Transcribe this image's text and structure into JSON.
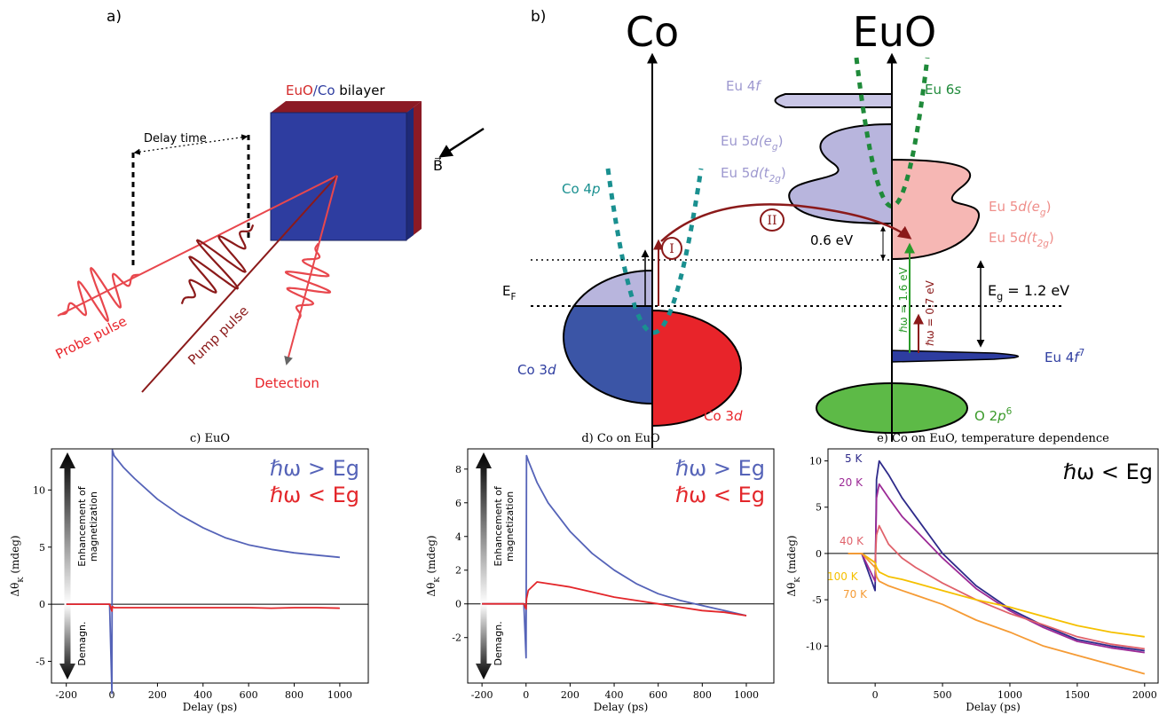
{
  "panel_a": {
    "label": "a)",
    "sample": [
      "EuO",
      "/",
      "Co",
      " bilayer"
    ],
    "delay": "Delay time",
    "field": "B⃗",
    "probe": "Probe pulse",
    "pump": "Pump pulse",
    "detection": "Detection"
  },
  "panel_b": {
    "label": "b)",
    "co": "Co",
    "euo": "EuO",
    "eu4f": [
      "Eu 4",
      "f"
    ],
    "eu6s": [
      "Eu 6",
      "s"
    ],
    "eu5d_eg_left": [
      "Eu 5",
      "d",
      "(e",
      "g",
      ")"
    ],
    "eu5d_t2g_left": [
      "Eu 5",
      "d",
      "(t",
      "2g",
      ")"
    ],
    "eu5d_eg_right": [
      "Eu 5",
      "d",
      "(e",
      "g",
      ")"
    ],
    "eu5d_t2g_right": [
      "Eu 5",
      "d",
      "(t",
      "2g",
      ")"
    ],
    "co4p": [
      "Co 4",
      "p"
    ],
    "gap": "0.6 eV",
    "ef": [
      "E",
      "F"
    ],
    "eg": [
      "E",
      "g",
      " = 1.2 eV"
    ],
    "hw_high": "ℏω = 1.6 eV",
    "hw_low": "ℏω = 0.7 eV",
    "eu4f7": [
      "Eu 4",
      "f",
      "7"
    ],
    "co3d_left": [
      "Co 3",
      "d"
    ],
    "co3d_right": [
      "Co 3",
      "d"
    ],
    "o2p6": [
      "O 2",
      "p",
      "6"
    ],
    "step1": "I",
    "step2": "II"
  },
  "chart_data": [
    {
      "type": "line",
      "title": "c) EuO",
      "xlabel": "Delay (ps)",
      "ylabel": [
        "Δθ",
        "K",
        " (mdeg)"
      ],
      "x": [
        -200,
        -100,
        -10,
        0,
        2,
        10,
        50,
        100,
        200,
        300,
        400,
        500,
        600,
        700,
        800,
        900,
        1000
      ],
      "series": [
        {
          "name": "ℏω > Eg",
          "color": "#5563b8",
          "values": [
            0,
            0,
            0,
            -7.8,
            13.5,
            13,
            12,
            11,
            9.2,
            7.8,
            6.7,
            5.8,
            5.2,
            4.8,
            4.5,
            4.3,
            4.1
          ]
        },
        {
          "name": "ℏω < Eg",
          "color": "#e3262a",
          "values": [
            0,
            0,
            0,
            -0.6,
            -0.2,
            -0.3,
            -0.3,
            -0.3,
            -0.3,
            -0.3,
            -0.3,
            -0.3,
            -0.3,
            -0.35,
            -0.3,
            -0.3,
            -0.35
          ]
        }
      ],
      "xlim": [
        -265,
        1125
      ],
      "xticks": [
        -200,
        0,
        200,
        400,
        600,
        800,
        1000
      ],
      "ylim": [
        -6.9,
        13.6
      ],
      "yticks": [
        -5,
        0,
        5,
        10
      ],
      "hline": 0,
      "legend": "upper right",
      "annotations": [
        "Enhancement of",
        "magnetization",
        "Demagn."
      ]
    },
    {
      "type": "line",
      "title": "d) Co on EuO",
      "xlabel": "Delay (ps)",
      "ylabel": [
        "Δθ",
        "K",
        " (mdeg)"
      ],
      "x": [
        -200,
        -100,
        -10,
        0,
        2,
        10,
        50,
        100,
        200,
        300,
        400,
        500,
        600,
        700,
        800,
        900,
        1000
      ],
      "series": [
        {
          "name": "ℏω > Eg",
          "color": "#5563b8",
          "values": [
            0,
            0,
            0,
            -3.2,
            8.8,
            8.5,
            7.2,
            6,
            4.3,
            3,
            2,
            1.2,
            0.6,
            0.2,
            -0.1,
            -0.4,
            -0.7
          ]
        },
        {
          "name": "ℏω < Eg",
          "color": "#e3262a",
          "values": [
            0,
            0,
            0,
            -0.3,
            0.3,
            0.8,
            1.3,
            1.2,
            1,
            0.7,
            0.4,
            0.2,
            0,
            -0.2,
            -0.4,
            -0.5,
            -0.7
          ]
        }
      ],
      "xlim": [
        -265,
        1125
      ],
      "xticks": [
        -200,
        0,
        200,
        400,
        600,
        800,
        1000
      ],
      "ylim": [
        -4.7,
        9.2
      ],
      "yticks": [
        -2,
        0,
        2,
        4,
        6,
        8
      ],
      "hline": 0,
      "legend": "upper right",
      "annotations": [
        "Enhancement of",
        "magnetization",
        "Demagn."
      ]
    },
    {
      "type": "line",
      "title": "e) Co on EuO, temperature dependence",
      "xlabel": "Delay (ps)",
      "ylabel": [
        "Δθ",
        "K",
        " (mdeg)"
      ],
      "x": [
        -200,
        -100,
        0,
        10,
        30,
        100,
        200,
        300,
        500,
        750,
        1000,
        1250,
        1500,
        1750,
        2000
      ],
      "series": [
        {
          "name": "5 K",
          "color": "#2e2a8a",
          "values": [
            0,
            0,
            -4,
            8,
            10,
            8.5,
            6,
            4,
            0,
            -3.5,
            -6,
            -7.8,
            -9.3,
            -10,
            -10.5
          ]
        },
        {
          "name": "20 K",
          "color": "#9c2a96",
          "values": [
            0,
            0,
            -3,
            6,
            7.5,
            6,
            4,
            2.5,
            -0.5,
            -3.8,
            -6.2,
            -8,
            -9.5,
            -10.2,
            -10.7
          ]
        },
        {
          "name": "40 K",
          "color": "#e0626b",
          "values": [
            0,
            0,
            -1,
            2,
            3,
            1,
            -0.5,
            -1.5,
            -3.2,
            -5,
            -6.5,
            -7.7,
            -9,
            -9.8,
            -10.3
          ]
        },
        {
          "name": "100 K",
          "color": "#f5c000",
          "values": [
            0,
            0,
            -1,
            -1.5,
            -2,
            -2.5,
            -2.8,
            -3.2,
            -4,
            -5,
            -5.8,
            -6.8,
            -7.8,
            -8.5,
            -9
          ]
        },
        {
          "name": "70 K",
          "color": "#f59b35",
          "values": [
            0,
            0,
            -1.5,
            -2.5,
            -3,
            -3.5,
            -4,
            -4.5,
            -5.5,
            -7.2,
            -8.5,
            -10,
            -11,
            -12,
            -13
          ]
        }
      ],
      "xlim": [
        -350,
        2100
      ],
      "xticks": [
        0,
        500,
        1000,
        1500,
        2000
      ],
      "ylim": [
        -14,
        11.3
      ],
      "yticks": [
        -10,
        -5,
        0,
        5,
        10
      ],
      "hline": 0,
      "legend": "left",
      "annotation": "ℏω < Eg"
    }
  ]
}
